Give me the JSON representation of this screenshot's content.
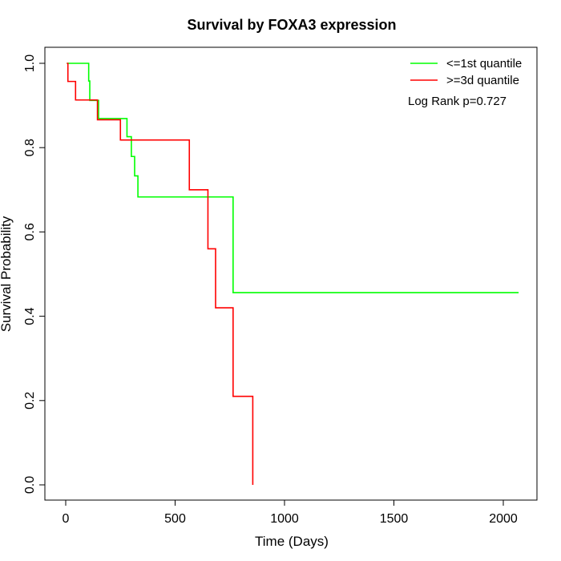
{
  "chart_data": {
    "type": "line",
    "step": true,
    "title": "Survival by FOXA3 expression",
    "xlabel": "Time (Days)",
    "ylabel": "Survival Probability",
    "xlim": [
      0,
      2070
    ],
    "ylim": [
      0,
      1
    ],
    "x_ticks": [
      0,
      500,
      1000,
      1500,
      2000
    ],
    "y_ticks": [
      0.0,
      0.2,
      0.4,
      0.6,
      0.8,
      1.0
    ],
    "x_tick_labels": [
      "0",
      "500",
      "1000",
      "1500",
      "2000"
    ],
    "y_tick_labels": [
      "0.0",
      "0.2",
      "0.4",
      "0.6",
      "0.8",
      "1.0"
    ],
    "grid": false,
    "legend_position": "top-right",
    "annotation": "Log Rank p=0.727",
    "series": [
      {
        "name": "<=1st quantile",
        "color": "#00ff00",
        "x": [
          5,
          105,
          110,
          150,
          280,
          300,
          315,
          330,
          765,
          2070
        ],
        "y": [
          1.0,
          0.958,
          0.912,
          0.869,
          0.826,
          0.779,
          0.733,
          0.683,
          0.456,
          0.456
        ]
      },
      {
        "name": ">=3d quantile",
        "color": "#ff0000",
        "x": [
          5,
          10,
          45,
          145,
          250,
          565,
          650,
          685,
          765,
          855
        ],
        "y": [
          1.0,
          0.957,
          0.913,
          0.866,
          0.818,
          0.7,
          0.56,
          0.42,
          0.21,
          0.0
        ]
      }
    ]
  }
}
